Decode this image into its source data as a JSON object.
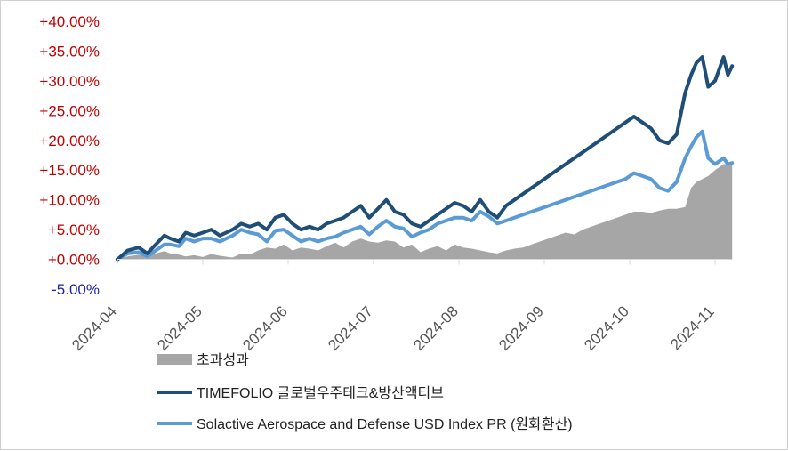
{
  "chart_data": {
    "type": "line",
    "title": "",
    "xlabel": "",
    "ylabel": "",
    "ylim": [
      -5,
      40
    ],
    "yticks": [
      {
        "value": 40,
        "label": "+40.00%"
      },
      {
        "value": 35,
        "label": "+35.00%"
      },
      {
        "value": 30,
        "label": "+30.00%"
      },
      {
        "value": 25,
        "label": "+25.00%"
      },
      {
        "value": 20,
        "label": "+20.00%"
      },
      {
        "value": 15,
        "label": "+15.00%"
      },
      {
        "value": 10,
        "label": "+10.00%"
      },
      {
        "value": 5,
        "label": "+5.00%"
      },
      {
        "value": 0,
        "label": "+0.00%"
      },
      {
        "value": -5,
        "label": "-5.00%"
      }
    ],
    "xlim": [
      0,
      7.2
    ],
    "xticks": [
      {
        "value": 0,
        "label": "2024-04"
      },
      {
        "value": 1,
        "label": "2024-05"
      },
      {
        "value": 2,
        "label": "2024-06"
      },
      {
        "value": 3,
        "label": "2024-07"
      },
      {
        "value": 4,
        "label": "2024-08"
      },
      {
        "value": 5,
        "label": "2024-09"
      },
      {
        "value": 6,
        "label": "2024-10"
      },
      {
        "value": 7,
        "label": "2024-11"
      }
    ],
    "colors": {
      "positive_tick": "#c00000",
      "negative_tick": "#1f1fa8",
      "area": "#a6a6a6",
      "timefolio": "#1f4e79",
      "solactive": "#5b9bd5"
    },
    "x": [
      0,
      0.12,
      0.25,
      0.35,
      0.45,
      0.55,
      0.62,
      0.72,
      0.8,
      0.9,
      1.0,
      1.1,
      1.2,
      1.35,
      1.45,
      1.55,
      1.65,
      1.75,
      1.85,
      1.95,
      2.05,
      2.15,
      2.25,
      2.35,
      2.45,
      2.55,
      2.65,
      2.75,
      2.85,
      2.95,
      3.05,
      3.15,
      3.25,
      3.35,
      3.45,
      3.55,
      3.65,
      3.75,
      3.85,
      3.95,
      4.05,
      4.15,
      4.25,
      4.35,
      4.45,
      4.55,
      4.65,
      4.75,
      4.85,
      4.95,
      5.05,
      5.15,
      5.25,
      5.35,
      5.45,
      5.55,
      5.65,
      5.75,
      5.85,
      5.95,
      6.05,
      6.15,
      6.25,
      6.35,
      6.45,
      6.55,
      6.65,
      6.72,
      6.78,
      6.85,
      6.92,
      7.0,
      7.05,
      7.1,
      7.15,
      7.2
    ],
    "series": [
      {
        "name": "초과성과",
        "type": "area",
        "values": [
          0.0,
          0.5,
          0.8,
          0.6,
          1.0,
          1.4,
          1.0,
          0.8,
          0.5,
          0.7,
          0.4,
          0.9,
          0.6,
          0.3,
          1.0,
          0.8,
          1.5,
          2.0,
          1.8,
          2.5,
          1.5,
          2.0,
          1.8,
          1.5,
          2.2,
          2.8,
          2.0,
          3.0,
          3.5,
          3.0,
          2.8,
          3.2,
          3.0,
          2.0,
          2.5,
          1.2,
          1.8,
          2.2,
          1.5,
          2.5,
          2.0,
          1.8,
          1.5,
          1.2,
          1.0,
          1.5,
          1.8,
          2.0,
          2.5,
          3.0,
          3.5,
          4.0,
          4.5,
          4.2,
          5.0,
          5.5,
          6.0,
          6.5,
          7.0,
          7.5,
          8.0,
          8.0,
          7.8,
          8.2,
          8.5,
          8.5,
          8.8,
          12.0,
          13.0,
          13.5,
          14.0,
          15.0,
          15.5,
          16.0,
          16.0,
          16.2
        ]
      },
      {
        "name": "TIMEFOLIO 글로벌우주테크&방산액티브",
        "type": "line",
        "values": [
          0.0,
          1.5,
          2.0,
          1.0,
          2.5,
          4.0,
          3.5,
          3.0,
          4.5,
          4.0,
          4.5,
          5.0,
          4.0,
          5.0,
          6.0,
          5.5,
          6.0,
          5.0,
          7.0,
          7.5,
          6.0,
          5.0,
          5.5,
          5.0,
          6.0,
          6.5,
          7.0,
          8.0,
          9.0,
          7.0,
          8.5,
          10.0,
          8.0,
          7.5,
          6.0,
          5.5,
          6.5,
          7.5,
          8.5,
          9.5,
          9.0,
          8.0,
          10.0,
          8.0,
          7.0,
          9.0,
          10.0,
          11.0,
          12.0,
          13.0,
          14.0,
          15.0,
          16.0,
          17.0,
          18.0,
          19.0,
          20.0,
          21.0,
          22.0,
          23.0,
          24.0,
          23.0,
          22.0,
          20.0,
          19.5,
          21.0,
          28.0,
          31.0,
          33.0,
          34.0,
          29.0,
          30.0,
          32.0,
          34.0,
          31.0,
          32.5
        ]
      },
      {
        "name": "Solactive Aerospace and Defense USD Index PR (원화환산)",
        "type": "line",
        "values": [
          0.0,
          1.0,
          1.2,
          0.5,
          1.5,
          2.5,
          2.5,
          2.2,
          3.5,
          3.0,
          3.5,
          3.5,
          3.0,
          4.0,
          5.0,
          4.5,
          4.2,
          3.0,
          4.8,
          5.0,
          4.0,
          3.0,
          3.5,
          3.0,
          3.5,
          3.8,
          4.5,
          5.0,
          5.5,
          4.2,
          5.5,
          6.5,
          5.5,
          5.2,
          3.8,
          4.5,
          5.0,
          6.0,
          6.5,
          7.0,
          7.0,
          6.5,
          8.0,
          7.2,
          6.0,
          6.5,
          7.0,
          7.5,
          8.0,
          8.5,
          9.0,
          9.5,
          10.0,
          10.5,
          11.0,
          11.5,
          12.0,
          12.5,
          13.0,
          13.5,
          14.5,
          14.0,
          13.5,
          12.0,
          11.5,
          13.0,
          17.0,
          19.0,
          20.5,
          21.5,
          17.0,
          16.0,
          16.5,
          17.0,
          16.0,
          16.2
        ]
      }
    ],
    "legend": [
      {
        "label": "초과성과",
        "style": "area"
      },
      {
        "label": "TIMEFOLIO 글로벌우주테크&방산액티브",
        "style": "line-dark"
      },
      {
        "label": "Solactive Aerospace and Defense USD Index PR (원화환산)",
        "style": "line-light"
      }
    ]
  }
}
